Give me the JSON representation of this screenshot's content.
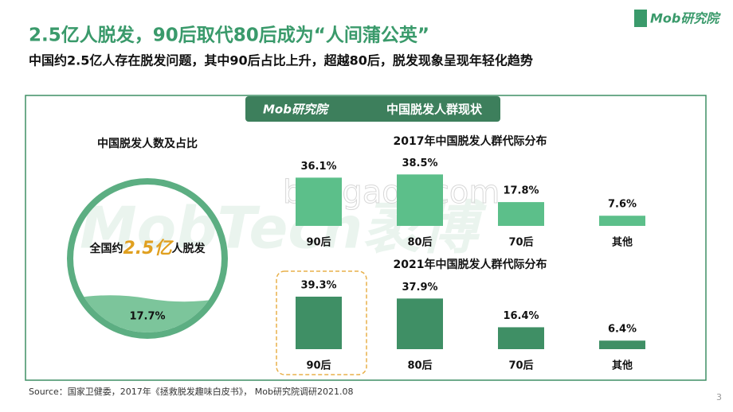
{
  "header": {
    "title": "2.5亿人脱发，90后取代80后成为“人间蒲公英”",
    "subtitle": "中国约2.5亿人存在脱发问题，其中90后占比上升，超越80后，脱发现象呈现年轻化趋势",
    "logo": "Mob研究院"
  },
  "panel": {
    "badge_logo": "Mob研究院",
    "badge_title": "中国脱发人群现状"
  },
  "watermark": [
    "MobTech袤博",
    "baogao8.com"
  ],
  "chart_data": [
    {
      "type": "circle-fill",
      "title": "中国脱发人数及占比",
      "label_prefix": "全国约",
      "highlight": "2.5亿",
      "label_suffix": "人脱发",
      "value": 17.7,
      "value_label": "17.7%",
      "color": "#7cc59b"
    },
    {
      "type": "bar",
      "title": "2017年中国脱发人群代际分布",
      "categories": [
        "90后",
        "80后",
        "70后",
        "其他"
      ],
      "values": [
        36.1,
        38.5,
        17.8,
        7.6
      ],
      "value_labels": [
        "36.1%",
        "38.5%",
        "17.8%",
        "7.6%"
      ],
      "color": "#5cbf8a"
    },
    {
      "type": "bar",
      "title": "2021年中国脱发人群代际分布",
      "categories": [
        "90后",
        "80后",
        "70后",
        "其他"
      ],
      "values": [
        39.3,
        37.9,
        16.4,
        6.4
      ],
      "value_labels": [
        "39.3%",
        "37.9%",
        "16.4%",
        "6.4%"
      ],
      "color": "#3f8f65",
      "highlight_index": 0
    }
  ],
  "footer": {
    "source": "Source：国家卫健委，2017年《拯救脱发趣味白皮书》， Mob研究院调研2021.08",
    "page": 3
  }
}
